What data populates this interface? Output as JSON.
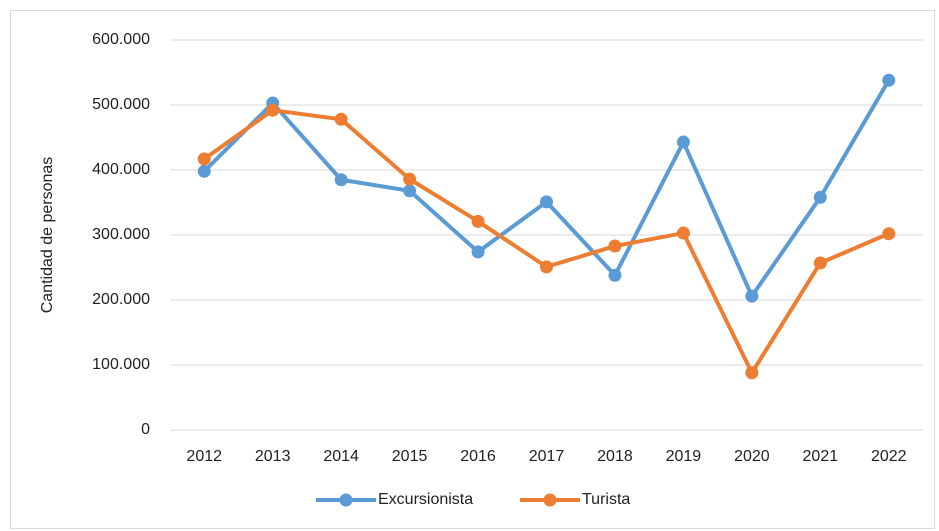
{
  "chart_data": {
    "type": "line",
    "y_label": "Cantidad de personas",
    "categories": [
      "2012",
      "2013",
      "2014",
      "2015",
      "2016",
      "2017",
      "2018",
      "2019",
      "2020",
      "2021",
      "2022"
    ],
    "series": [
      {
        "name": "Excursionista",
        "color": "#5b9bd5",
        "values": [
          398000,
          503000,
          385000,
          368000,
          274000,
          351000,
          238000,
          443000,
          206000,
          358000,
          538000
        ]
      },
      {
        "name": "Turista",
        "color": "#ed7d31",
        "values": [
          417000,
          492000,
          478000,
          386000,
          321000,
          251000,
          283000,
          303000,
          88000,
          257000,
          302000
        ]
      }
    ],
    "ylim": [
      0,
      600000
    ],
    "yticks": [
      0,
      {
        "value": 100000,
        "label": "100.000"
      },
      {
        "value": 200000,
        "label": "200.000"
      },
      {
        "value": 300000,
        "label": "300.000"
      },
      {
        "value": 400000,
        "label": "400.000"
      },
      {
        "value": 500000,
        "label": "500.000"
      },
      {
        "value": 600000,
        "label": "600.000"
      }
    ],
    "grid": true,
    "legend": "bottom"
  }
}
